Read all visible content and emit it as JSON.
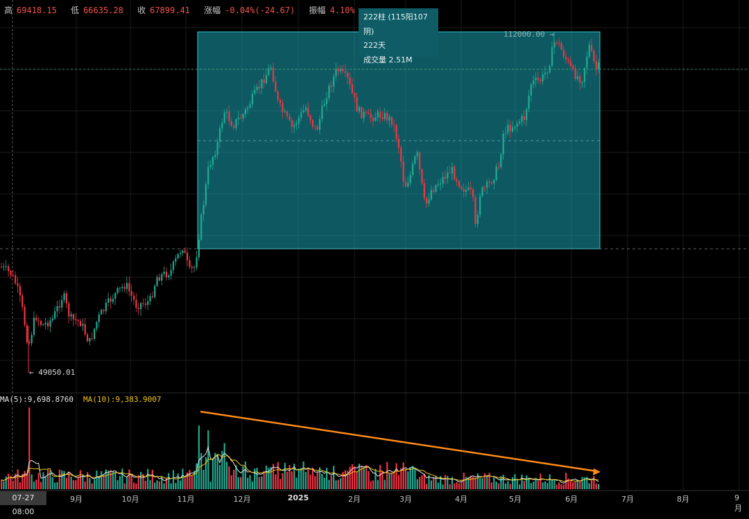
{
  "header": {
    "high_label": "高",
    "high_value": "69418.15",
    "low_label": "低",
    "low_value": "66635.28",
    "close_label": "收",
    "close_value": "67899.41",
    "change_label": "涨幅",
    "change_value": "-0.04%(-24.67)",
    "amplitude_label": "振幅",
    "amplitude_value": "4.10%"
  },
  "range_tooltip": {
    "bars": "222柱 (115阳107阴)",
    "days": "222天",
    "volume": "成交量 2.51M"
  },
  "price_marks": {
    "high": "112000.00",
    "low": "49050.01"
  },
  "volume_panel": {
    "ma5": "MA(5):9,698.8760",
    "ma10": "MA(10):9,383.9007"
  },
  "x_axis": {
    "cursor_label": "07-27 08:00",
    "labels": [
      "9月",
      "10月",
      "11月",
      "12月",
      "2025",
      "2月",
      "3月",
      "4月",
      "5月",
      "6月",
      "7月",
      "8月",
      "9月"
    ]
  },
  "colors": {
    "up": "#22ab94",
    "down": "#f23645",
    "range_fill": "#1aa3b0",
    "trend_line": "#ff8c1a"
  },
  "chart_data": {
    "type": "candlestick",
    "range_box": {
      "from": "11月",
      "to": "6月",
      "high": 112000.0,
      "bars": 222
    },
    "min_price": 49050.01,
    "max_price": 112000.0,
    "volume_trend": "decreasing"
  }
}
